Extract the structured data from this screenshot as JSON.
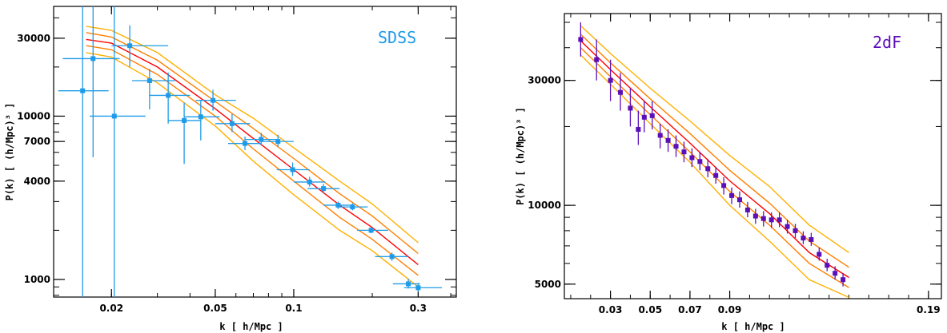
{
  "chart_data": [
    {
      "type": "scatter",
      "label": "SDSS",
      "label_color": "#1e9be8",
      "point_color": "#1e9be8",
      "xlabel": "k  [ h/Mpc ]",
      "ylabel": "P(k)  [ (h/Mpc)³ ]",
      "xscale": "log",
      "yscale": "log",
      "xlim": [
        0.012,
        0.42
      ],
      "ylim": [
        780,
        47000
      ],
      "xticks": [
        {
          "v": 0.02,
          "t": "0.02"
        },
        {
          "v": 0.05,
          "t": "0.05"
        },
        {
          "v": 0.1,
          "t": "0.1"
        },
        {
          "v": 0.3,
          "t": "0.3"
        }
      ],
      "yticks": [
        {
          "v": 1000,
          "t": "1000"
        },
        {
          "v": 4000,
          "t": "4000"
        },
        {
          "v": 7000,
          "t": "7000"
        },
        {
          "v": 10000,
          "t": "10000"
        },
        {
          "v": 30000,
          "t": "30000"
        }
      ],
      "points": [
        {
          "x": 0.0155,
          "y": 14300,
          "xlo": 0.0125,
          "xhi": 0.0195,
          "ylo": 780,
          "yhi": 47000
        },
        {
          "x": 0.017,
          "y": 22500,
          "xlo": 0.013,
          "xhi": 0.0215,
          "ylo": 5600,
          "yhi": 47000
        },
        {
          "x": 0.0205,
          "y": 10000,
          "xlo": 0.0165,
          "xhi": 0.027,
          "ylo": 780,
          "yhi": 47000
        },
        {
          "x": 0.0235,
          "y": 27000,
          "xlo": 0.02,
          "xhi": 0.033,
          "ylo": 20000,
          "yhi": 36000
        },
        {
          "x": 0.028,
          "y": 16500,
          "xlo": 0.024,
          "xhi": 0.035,
          "ylo": 11000,
          "yhi": 19500
        },
        {
          "x": 0.033,
          "y": 13400,
          "xlo": 0.028,
          "xhi": 0.04,
          "ylo": 9000,
          "yhi": 18500
        },
        {
          "x": 0.038,
          "y": 9400,
          "xlo": 0.033,
          "xhi": 0.044,
          "ylo": 5100,
          "yhi": 12100
        },
        {
          "x": 0.044,
          "y": 9900,
          "xlo": 0.038,
          "xhi": 0.052,
          "ylo": 7100,
          "yhi": 12500
        },
        {
          "x": 0.049,
          "y": 12500,
          "xlo": 0.042,
          "xhi": 0.06,
          "ylo": 10800,
          "yhi": 14500
        },
        {
          "x": 0.058,
          "y": 9000,
          "xlo": 0.05,
          "xhi": 0.068,
          "ylo": 8000,
          "yhi": 10300
        },
        {
          "x": 0.065,
          "y": 6800,
          "xlo": 0.056,
          "xhi": 0.075,
          "ylo": 6200,
          "yhi": 7500
        },
        {
          "x": 0.075,
          "y": 7200,
          "xlo": 0.065,
          "xhi": 0.087,
          "ylo": 6600,
          "yhi": 7900
        },
        {
          "x": 0.087,
          "y": 7000,
          "xlo": 0.075,
          "xhi": 0.1,
          "ylo": 6500,
          "yhi": 7700
        },
        {
          "x": 0.099,
          "y": 4700,
          "xlo": 0.086,
          "xhi": 0.115,
          "ylo": 4300,
          "yhi": 5200
        },
        {
          "x": 0.115,
          "y": 3950,
          "xlo": 0.1,
          "xhi": 0.132,
          "ylo": 3700,
          "yhi": 4250
        },
        {
          "x": 0.13,
          "y": 3600,
          "xlo": 0.113,
          "xhi": 0.15,
          "ylo": 3350,
          "yhi": 3850
        },
        {
          "x": 0.148,
          "y": 2850,
          "xlo": 0.13,
          "xhi": 0.17,
          "ylo": 2700,
          "yhi": 3000
        },
        {
          "x": 0.168,
          "y": 2780,
          "xlo": 0.147,
          "xhi": 0.192,
          "ylo": 2650,
          "yhi": 2930
        },
        {
          "x": 0.198,
          "y": 2000,
          "xlo": 0.175,
          "xhi": 0.23,
          "ylo": 1920,
          "yhi": 2080
        },
        {
          "x": 0.238,
          "y": 1380,
          "xlo": 0.205,
          "xhi": 0.275,
          "ylo": 1300,
          "yhi": 1460
        },
        {
          "x": 0.275,
          "y": 940,
          "xlo": 0.24,
          "xhi": 0.305,
          "ylo": 880,
          "yhi": 1010
        },
        {
          "x": 0.3,
          "y": 890,
          "xlo": 0.265,
          "xhi": 0.37,
          "ylo": 840,
          "yhi": 950
        }
      ],
      "curves": [
        {
          "color": "#ffb000",
          "x": [
            0.016,
            0.02,
            0.03,
            0.05,
            0.07,
            0.1,
            0.15,
            0.2,
            0.3
          ],
          "y": [
            35500,
            33500,
            24500,
            13500,
            9700,
            6400,
            4000,
            2900,
            1680
          ]
        },
        {
          "color": "#ff7f00",
          "x": [
            0.016,
            0.02,
            0.03,
            0.05,
            0.07,
            0.1,
            0.15,
            0.2,
            0.3
          ],
          "y": [
            32500,
            30500,
            22000,
            12300,
            8400,
            5500,
            3350,
            2450,
            1440
          ]
        },
        {
          "color": "#ff0000",
          "x": [
            0.016,
            0.02,
            0.03,
            0.05,
            0.07,
            0.1,
            0.15,
            0.2,
            0.3
          ],
          "y": [
            29500,
            28000,
            20000,
            11100,
            7300,
            4700,
            2850,
            2080,
            1230
          ]
        },
        {
          "color": "#ff7f00",
          "x": [
            0.016,
            0.02,
            0.03,
            0.05,
            0.07,
            0.1,
            0.15,
            0.2,
            0.3
          ],
          "y": [
            27000,
            25500,
            18000,
            10000,
            6300,
            4000,
            2400,
            1760,
            1060
          ]
        },
        {
          "color": "#ffb000",
          "x": [
            0.016,
            0.02,
            0.03,
            0.05,
            0.07,
            0.1,
            0.15,
            0.2,
            0.3
          ],
          "y": [
            24500,
            23000,
            16000,
            8700,
            5300,
            3300,
            2000,
            1500,
            900
          ]
        }
      ]
    },
    {
      "type": "scatter",
      "label": "2dF",
      "label_color": "#5b0fb8",
      "point_color": "#5b0fb8",
      "xlabel": "k  [ h/Mpc ]",
      "ylabel": "P(k)  [ (h/Mpc)³ ]",
      "xscale": "linear",
      "yscale": "log",
      "xlim": [
        0.0068,
        0.1965
      ],
      "ylim": [
        4400,
        54000
      ],
      "xticks": [
        {
          "v": 0.03,
          "t": "0.03"
        },
        {
          "v": 0.05,
          "t": "0.05"
        },
        {
          "v": 0.07,
          "t": "0.07"
        },
        {
          "v": 0.09,
          "t": "0.09"
        },
        {
          "v": 0.19,
          "t": "0.19"
        }
      ],
      "yticks": [
        {
          "v": 5000,
          "t": "5000"
        },
        {
          "v": 10000,
          "t": "10000"
        },
        {
          "v": 30000,
          "t": "30000"
        }
      ],
      "points": [
        {
          "x": 0.015,
          "y": 43000,
          "ylo": 37000,
          "yhi": 50000
        },
        {
          "x": 0.023,
          "y": 36000,
          "ylo": 30000,
          "yhi": 43000
        },
        {
          "x": 0.03,
          "y": 30000,
          "ylo": 25000,
          "yhi": 36000
        },
        {
          "x": 0.035,
          "y": 27000,
          "ylo": 23000,
          "yhi": 32000
        },
        {
          "x": 0.04,
          "y": 23500,
          "ylo": 20000,
          "yhi": 28000
        },
        {
          "x": 0.044,
          "y": 19500,
          "ylo": 17000,
          "yhi": 23000
        },
        {
          "x": 0.047,
          "y": 21700,
          "ylo": 19000,
          "yhi": 25000
        },
        {
          "x": 0.051,
          "y": 22000,
          "ylo": 19500,
          "yhi": 25000
        },
        {
          "x": 0.055,
          "y": 18500,
          "ylo": 16500,
          "yhi": 20500
        },
        {
          "x": 0.059,
          "y": 17700,
          "ylo": 16000,
          "yhi": 19500
        },
        {
          "x": 0.063,
          "y": 16800,
          "ylo": 15300,
          "yhi": 18500
        },
        {
          "x": 0.067,
          "y": 16000,
          "ylo": 14600,
          "yhi": 17500
        },
        {
          "x": 0.071,
          "y": 15200,
          "ylo": 14000,
          "yhi": 16500
        },
        {
          "x": 0.075,
          "y": 14700,
          "ylo": 13600,
          "yhi": 16000
        },
        {
          "x": 0.079,
          "y": 13800,
          "ylo": 12800,
          "yhi": 15000
        },
        {
          "x": 0.083,
          "y": 13000,
          "ylo": 12100,
          "yhi": 14000
        },
        {
          "x": 0.087,
          "y": 11900,
          "ylo": 11000,
          "yhi": 12800
        },
        {
          "x": 0.091,
          "y": 10900,
          "ylo": 10100,
          "yhi": 11700
        },
        {
          "x": 0.095,
          "y": 10500,
          "ylo": 9800,
          "yhi": 11300
        },
        {
          "x": 0.099,
          "y": 9600,
          "ylo": 9000,
          "yhi": 10300
        },
        {
          "x": 0.103,
          "y": 9100,
          "ylo": 8500,
          "yhi": 9700
        },
        {
          "x": 0.107,
          "y": 8900,
          "ylo": 8300,
          "yhi": 9500
        },
        {
          "x": 0.111,
          "y": 8800,
          "ylo": 8200,
          "yhi": 9400
        },
        {
          "x": 0.115,
          "y": 8800,
          "ylo": 8250,
          "yhi": 9400
        },
        {
          "x": 0.119,
          "y": 8300,
          "ylo": 7800,
          "yhi": 8800
        },
        {
          "x": 0.123,
          "y": 8000,
          "ylo": 7500,
          "yhi": 8500
        },
        {
          "x": 0.127,
          "y": 7500,
          "ylo": 7100,
          "yhi": 7950
        },
        {
          "x": 0.131,
          "y": 7400,
          "ylo": 7000,
          "yhi": 7850
        },
        {
          "x": 0.135,
          "y": 6500,
          "ylo": 6150,
          "yhi": 6900
        },
        {
          "x": 0.139,
          "y": 5900,
          "ylo": 5600,
          "yhi": 6250
        },
        {
          "x": 0.143,
          "y": 5500,
          "ylo": 5200,
          "yhi": 5850
        },
        {
          "x": 0.147,
          "y": 5200,
          "ylo": 4900,
          "yhi": 5500
        }
      ],
      "curves": [
        {
          "color": "#ffb000",
          "x": [
            0.015,
            0.03,
            0.05,
            0.07,
            0.09,
            0.11,
            0.13,
            0.15
          ],
          "y": [
            48500,
            38000,
            28000,
            21000,
            15500,
            11800,
            8400,
            6600
          ]
        },
        {
          "color": "#ff7f00",
          "x": [
            0.015,
            0.03,
            0.05,
            0.07,
            0.09,
            0.11,
            0.13,
            0.15
          ],
          "y": [
            45000,
            35000,
            25500,
            18800,
            13600,
            10200,
            7300,
            5800
          ]
        },
        {
          "color": "#ff0000",
          "x": [
            0.015,
            0.03,
            0.05,
            0.07,
            0.09,
            0.11,
            0.13,
            0.15
          ],
          "y": [
            42500,
            33000,
            23800,
            17300,
            12400,
            9300,
            6600,
            5300
          ]
        },
        {
          "color": "#ff7f00",
          "x": [
            0.015,
            0.03,
            0.05,
            0.07,
            0.09,
            0.11,
            0.13,
            0.15
          ],
          "y": [
            40000,
            31000,
            22200,
            16000,
            11300,
            8400,
            6000,
            4850
          ]
        },
        {
          "color": "#ffb000",
          "x": [
            0.015,
            0.03,
            0.05,
            0.07,
            0.09,
            0.11,
            0.13,
            0.15
          ],
          "y": [
            37500,
            29000,
            20500,
            14600,
            10000,
            7300,
            5200,
            4450
          ]
        }
      ]
    }
  ]
}
